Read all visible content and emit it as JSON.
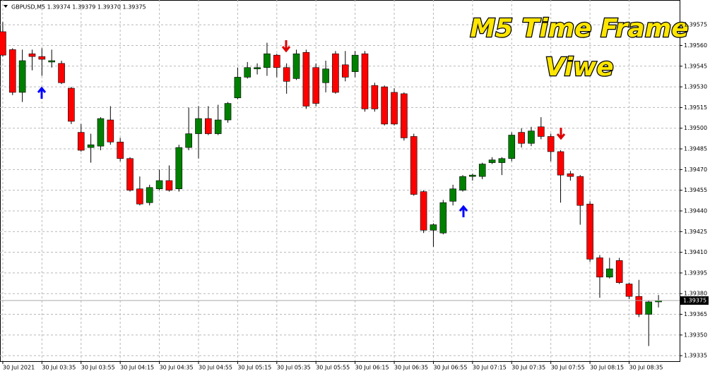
{
  "chart_data": {
    "type": "candlestick",
    "header": "GBPUSD,M5  1.39374 1.39379 1.39370 1.39375",
    "annotations": [
      "M5 Time Frame",
      "Viwe"
    ],
    "categories": [
      "30 Jul 2021",
      null,
      null,
      null,
      "30 Jul 03:35",
      null,
      null,
      null,
      "30 Jul 03:55",
      null,
      null,
      null,
      "30 Jul 04:15",
      null,
      null,
      null,
      "30 Jul 04:35",
      null,
      null,
      null,
      "30 Jul 04:55",
      null,
      null,
      null,
      "30 Jul 05:15",
      null,
      null,
      null,
      "30 Jul 05:35",
      null,
      null,
      null,
      "30 Jul 05:55",
      null,
      null,
      null,
      "30 Jul 06:15",
      null,
      null,
      null,
      "30 Jul 06:35",
      null,
      null,
      null,
      "30 Jul 06:55",
      null,
      null,
      null,
      "30 Jul 07:15",
      null,
      null,
      null,
      "30 Jul 07:35",
      null,
      null,
      null,
      "30 Jul 07:55",
      null,
      null,
      null,
      "30 Jul 08:15",
      null,
      null,
      null,
      "30 Jul 08:35",
      null,
      null,
      null
    ],
    "open": [
      1.3957,
      1.39557,
      1.39526,
      1.39554,
      1.39552,
      1.39548,
      1.39547,
      1.39529,
      1.39497,
      1.39486,
      1.39487,
      1.39506,
      1.3949,
      1.39478,
      1.39456,
      1.39446,
      1.39456,
      1.39462,
      1.39456,
      1.39486,
      1.39496,
      1.39507,
      1.39496,
      1.39506,
      1.39522,
      1.39537,
      1.39543,
      1.39544,
      1.39553,
      1.39544,
      1.39536,
      1.39555,
      1.39544,
      1.39533,
      1.39554,
      1.39546,
      1.39541,
      1.39554,
      1.39531,
      1.3953,
      1.39526,
      1.39525,
      1.39494,
      1.39454,
      1.39426,
      1.39424,
      1.39447,
      1.39455,
      1.39465,
      1.39465,
      1.39475,
      1.39475,
      1.39478,
      1.39497,
      1.39489,
      1.39501,
      1.39494,
      1.39483,
      1.39467,
      1.39465,
      1.39445,
      1.39406,
      1.39392,
      1.39404,
      1.39387,
      1.39378,
      1.39365,
      1.39374
    ],
    "high": [
      1.39577,
      1.39558,
      1.39557,
      1.39557,
      1.39558,
      1.39557,
      1.39549,
      1.3953,
      1.39503,
      1.39496,
      1.39508,
      1.39516,
      1.39493,
      1.39479,
      1.39465,
      1.39459,
      1.3947,
      1.39473,
      1.39488,
      1.39515,
      1.39516,
      1.39516,
      1.39517,
      1.39519,
      1.39544,
      1.39548,
      1.39547,
      1.39562,
      1.39554,
      1.39547,
      1.39557,
      1.39557,
      1.39547,
      1.39549,
      1.39556,
      1.39556,
      1.39556,
      1.39556,
      1.39533,
      1.39531,
      1.39529,
      1.39526,
      1.39496,
      1.39455,
      1.39431,
      1.39448,
      1.39459,
      1.39466,
      1.39467,
      1.39475,
      1.39479,
      1.39479,
      1.39497,
      1.395,
      1.39501,
      1.39508,
      1.39496,
      1.39484,
      1.39469,
      1.39466,
      1.39447,
      1.39408,
      1.39406,
      1.39406,
      1.39388,
      1.3939,
      1.39375,
      1.39379
    ],
    "low": [
      1.39552,
      1.39524,
      1.39519,
      1.39542,
      1.39538,
      1.39544,
      1.39532,
      1.39503,
      1.39483,
      1.39475,
      1.39484,
      1.39488,
      1.39476,
      1.39454,
      1.39444,
      1.39444,
      1.39455,
      1.39454,
      1.39454,
      1.39484,
      1.39478,
      1.39495,
      1.39495,
      1.39504,
      1.39521,
      1.39536,
      1.39539,
      1.39538,
      1.39537,
      1.39525,
      1.39535,
      1.39514,
      1.39516,
      1.39526,
      1.39525,
      1.39534,
      1.39537,
      1.39512,
      1.39512,
      1.39502,
      1.39502,
      1.39491,
      1.39451,
      1.39424,
      1.39414,
      1.39423,
      1.39444,
      1.39454,
      1.39462,
      1.39463,
      1.39474,
      1.39466,
      1.39476,
      1.39486,
      1.39487,
      1.39492,
      1.39476,
      1.39446,
      1.39462,
      1.3943,
      1.39403,
      1.39377,
      1.39391,
      1.39387,
      1.39376,
      1.39363,
      1.39342,
      1.3937
    ],
    "close": [
      1.39553,
      1.39526,
      1.39549,
      1.39552,
      1.3955,
      1.39549,
      1.39533,
      1.39505,
      1.39484,
      1.39488,
      1.39507,
      1.3949,
      1.39478,
      1.39455,
      1.39445,
      1.39457,
      1.39462,
      1.39455,
      1.39486,
      1.39496,
      1.39507,
      1.39496,
      1.39506,
      1.39518,
      1.39537,
      1.39544,
      1.39544,
      1.39554,
      1.39544,
      1.39534,
      1.39554,
      1.39516,
      1.39518,
      1.39543,
      1.39526,
      1.39537,
      1.39553,
      1.39514,
      1.39514,
      1.39503,
      1.39503,
      1.39493,
      1.39452,
      1.39426,
      1.3943,
      1.39446,
      1.39456,
      1.39465,
      1.39466,
      1.39474,
      1.39477,
      1.39478,
      1.39495,
      1.39489,
      1.39498,
      1.39494,
      1.39483,
      1.39466,
      1.39465,
      1.39444,
      1.39405,
      1.39392,
      1.39398,
      1.39388,
      1.39378,
      1.39365,
      1.39374,
      1.39375
    ],
    "up_color": "#008000",
    "down_color": "#ff0000",
    "current_price": 1.39375,
    "ylim": [
      1.39331,
      1.39593
    ],
    "yticks": [
      {
        "value": 1.39575,
        "label": "1.39575"
      },
      {
        "value": 1.3956,
        "label": "1.39560"
      },
      {
        "value": 1.39545,
        "label": "1.39545"
      },
      {
        "value": 1.3953,
        "label": "1.39530"
      },
      {
        "value": 1.39515,
        "label": "1.39515"
      },
      {
        "value": 1.395,
        "label": "1.39500"
      },
      {
        "value": 1.39485,
        "label": "1.39485"
      },
      {
        "value": 1.3947,
        "label": "1.39470"
      },
      {
        "value": 1.39455,
        "label": "1.39455"
      },
      {
        "value": 1.3944,
        "label": "1.39440"
      },
      {
        "value": 1.39425,
        "label": "1.39425"
      },
      {
        "value": 1.3941,
        "label": "1.39410"
      },
      {
        "value": 1.39395,
        "label": "1.39395"
      },
      {
        "value": 1.3938,
        "label": "1.39380"
      },
      {
        "value": 1.39365,
        "label": "1.39365"
      },
      {
        "value": 1.3935,
        "label": "1.39350"
      },
      {
        "value": 1.39335,
        "label": "1.39335"
      }
    ],
    "grid": true
  }
}
